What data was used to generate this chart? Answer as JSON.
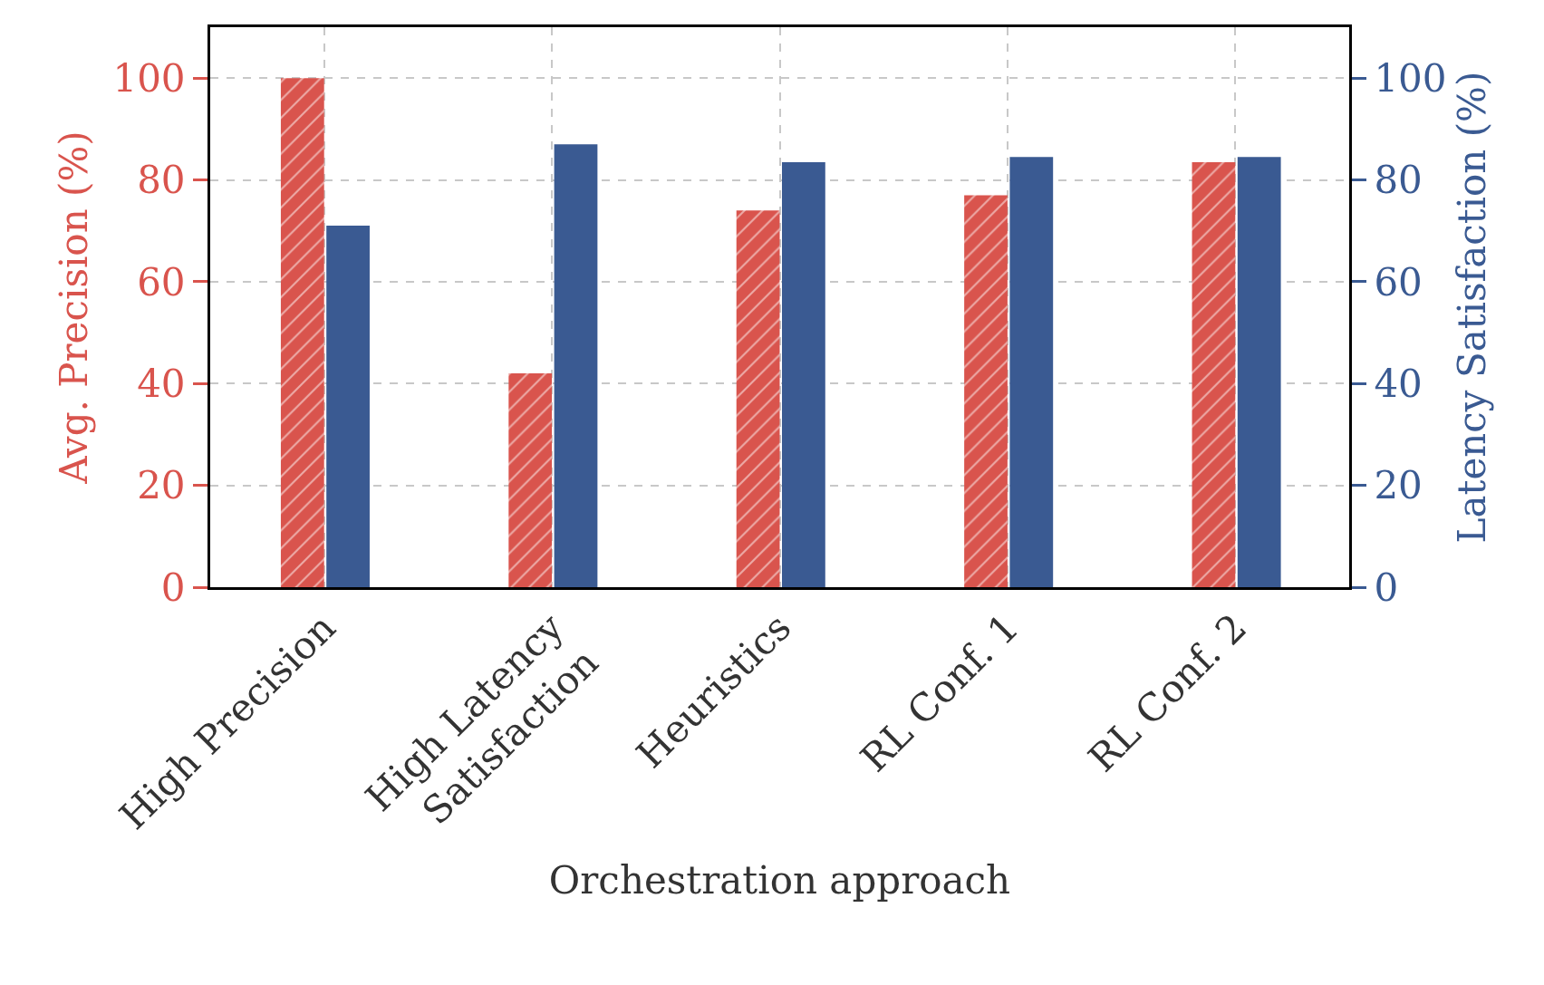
{
  "chart_data": {
    "type": "bar",
    "xlabel": "Orchestration approach",
    "ylabel": "Avg. Precision (%)",
    "y2label": "Latency Satisfaction (%)",
    "categories": [
      "High Precision",
      "High Latency\nSatisfaction",
      "Heuristics",
      "RL Conf. 1",
      "RL Conf. 2"
    ],
    "series": [
      {
        "color": "#d9544d",
        "values": [
          100,
          42,
          74,
          77,
          83.5
        ]
      },
      {
        "color": "#3a5a92",
        "axis": "y2",
        "values": [
          71,
          87,
          83.5,
          84.5,
          84.5
        ]
      }
    ],
    "ylim": [
      0,
      110
    ],
    "yticks": [
      0,
      20,
      40,
      60,
      80,
      100
    ],
    "y2lim": [
      0,
      110
    ],
    "y2ticks": [
      0,
      20,
      40,
      60,
      80,
      100
    ],
    "grid": true
  }
}
